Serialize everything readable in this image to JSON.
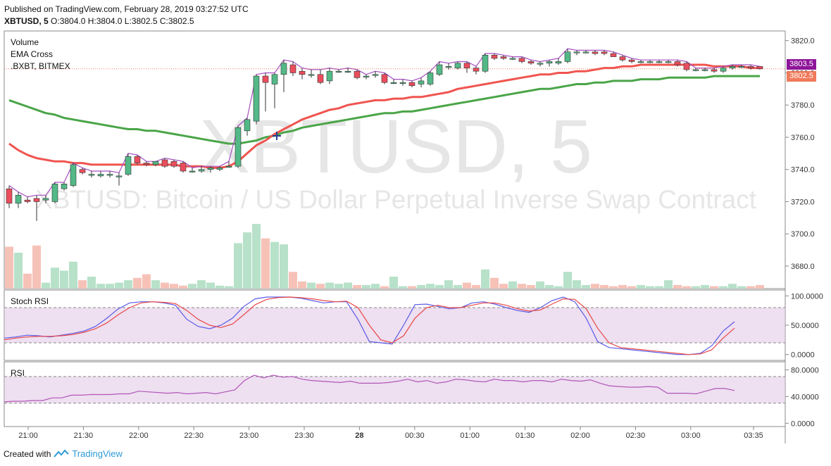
{
  "published": "Published on TradingView.com, February 28, 2019 03:27:52 UTC",
  "symbol": "XBTUSD, 5",
  "ohlc": {
    "o_label": "O:",
    "o": "3804.0",
    "h_label": "H:",
    "h": "3804.0",
    "l_label": "L:",
    "l": "3802.5",
    "c_label": "C:",
    "c": "3802.5"
  },
  "legend": [
    "Volume",
    "EMA Cross",
    ".BXBT, BITMEX"
  ],
  "watermark": {
    "big": "XBTUSD, 5",
    "small": "XBTUSD: Bitcoin / US Dollar Perpetual Inverse Swap Contract"
  },
  "badges": {
    "ema_value": "3803.5",
    "ema_color": "#8e1599",
    "last_price": "3802.5",
    "last_color": "#f07a5b"
  },
  "footer": {
    "created_with": "Created with",
    "brand": "TradingView"
  },
  "colors": {
    "up": "#53b987",
    "down": "#eb4d5c",
    "ema_fast": "#f0544f",
    "ema_slow": "#4aa548",
    "index_line": "#a64fc2",
    "stoch_k": "#5a5ae6",
    "stoch_d": "#e84848",
    "rsi": "#b257b8",
    "band": "#e0c4e6"
  },
  "chart_data": [
    {
      "type": "candlestick",
      "title": "XBTUSD, 5",
      "price_axis": {
        "ticks": [
          "3820.0",
          "3800.0",
          "3780.0",
          "3760.0",
          "3740.0",
          "3720.0",
          "3700.0",
          "3680.0"
        ],
        "ylim": [
          3666,
          3826
        ]
      },
      "time_axis": {
        "ticks": [
          "21:00",
          "21:30",
          "22:00",
          "22:30",
          "23:00",
          "23:30",
          "28",
          "00:30",
          "01:00",
          "01:30",
          "02:00",
          "02:30",
          "03:00",
          "03:35"
        ],
        "x_start": "20:50",
        "interval_minutes": 5
      },
      "candles": [
        {
          "o": 3728,
          "h": 3730,
          "l": 3716,
          "c": 3719
        },
        {
          "o": 3719,
          "h": 3726,
          "l": 3716,
          "c": 3724
        },
        {
          "o": 3721,
          "h": 3723,
          "l": 3719,
          "c": 3720
        },
        {
          "o": 3722,
          "h": 3724,
          "l": 3708,
          "c": 3720
        },
        {
          "o": 3721,
          "h": 3724,
          "l": 3719,
          "c": 3722
        },
        {
          "o": 3720,
          "h": 3732,
          "l": 3719,
          "c": 3731
        },
        {
          "o": 3728,
          "h": 3732,
          "l": 3727,
          "c": 3731
        },
        {
          "o": 3730,
          "h": 3744,
          "l": 3729,
          "c": 3743
        },
        {
          "o": 3740,
          "h": 3741,
          "l": 3737,
          "c": 3738
        },
        {
          "o": 3737,
          "h": 3739,
          "l": 3735,
          "c": 3737
        },
        {
          "o": 3736,
          "h": 3739,
          "l": 3735,
          "c": 3737
        },
        {
          "o": 3737,
          "h": 3739,
          "l": 3735,
          "c": 3737
        },
        {
          "o": 3736,
          "h": 3738,
          "l": 3730,
          "c": 3736
        },
        {
          "o": 3737,
          "h": 3750,
          "l": 3736,
          "c": 3748
        },
        {
          "o": 3748,
          "h": 3749,
          "l": 3743,
          "c": 3744
        },
        {
          "o": 3744,
          "h": 3745,
          "l": 3742,
          "c": 3743
        },
        {
          "o": 3743,
          "h": 3745,
          "l": 3742,
          "c": 3745
        },
        {
          "o": 3746,
          "h": 3747,
          "l": 3741,
          "c": 3742
        },
        {
          "o": 3745,
          "h": 3746,
          "l": 3741,
          "c": 3742
        },
        {
          "o": 3744,
          "h": 3745,
          "l": 3738,
          "c": 3739
        },
        {
          "o": 3739,
          "h": 3741,
          "l": 3738,
          "c": 3739
        },
        {
          "o": 3739,
          "h": 3742,
          "l": 3738,
          "c": 3740
        },
        {
          "o": 3740,
          "h": 3742,
          "l": 3738,
          "c": 3741
        },
        {
          "o": 3740,
          "h": 3742,
          "l": 3739,
          "c": 3741
        },
        {
          "o": 3742,
          "h": 3745,
          "l": 3741,
          "c": 3742
        },
        {
          "o": 3742,
          "h": 3767,
          "l": 3741,
          "c": 3766
        },
        {
          "o": 3764,
          "h": 3772,
          "l": 3761,
          "c": 3771
        },
        {
          "o": 3770,
          "h": 3799,
          "l": 3768,
          "c": 3798
        },
        {
          "o": 3798,
          "h": 3800,
          "l": 3776,
          "c": 3794
        },
        {
          "o": 3793,
          "h": 3800,
          "l": 3778,
          "c": 3799
        },
        {
          "o": 3799,
          "h": 3808,
          "l": 3788,
          "c": 3806
        },
        {
          "o": 3805,
          "h": 3807,
          "l": 3798,
          "c": 3800
        },
        {
          "o": 3801,
          "h": 3803,
          "l": 3796,
          "c": 3799
        },
        {
          "o": 3799,
          "h": 3802,
          "l": 3797,
          "c": 3799
        },
        {
          "o": 3799,
          "h": 3802,
          "l": 3793,
          "c": 3794
        },
        {
          "o": 3795,
          "h": 3803,
          "l": 3793,
          "c": 3801
        },
        {
          "o": 3801,
          "h": 3802,
          "l": 3800,
          "c": 3801
        },
        {
          "o": 3801,
          "h": 3803,
          "l": 3800,
          "c": 3801
        },
        {
          "o": 3801,
          "h": 3802,
          "l": 3796,
          "c": 3797
        },
        {
          "o": 3798,
          "h": 3799,
          "l": 3796,
          "c": 3798
        },
        {
          "o": 3799,
          "h": 3801,
          "l": 3797,
          "c": 3799
        },
        {
          "o": 3799,
          "h": 3800,
          "l": 3793,
          "c": 3794
        },
        {
          "o": 3794,
          "h": 3796,
          "l": 3793,
          "c": 3794
        },
        {
          "o": 3794,
          "h": 3796,
          "l": 3792,
          "c": 3794
        },
        {
          "o": 3794,
          "h": 3795,
          "l": 3791,
          "c": 3792
        },
        {
          "o": 3793,
          "h": 3797,
          "l": 3791,
          "c": 3795
        },
        {
          "o": 3793,
          "h": 3801,
          "l": 3792,
          "c": 3800
        },
        {
          "o": 3799,
          "h": 3807,
          "l": 3798,
          "c": 3805
        },
        {
          "o": 3804,
          "h": 3806,
          "l": 3802,
          "c": 3804
        },
        {
          "o": 3803,
          "h": 3807,
          "l": 3802,
          "c": 3806
        },
        {
          "o": 3806,
          "h": 3807,
          "l": 3800,
          "c": 3803
        },
        {
          "o": 3803,
          "h": 3804,
          "l": 3799,
          "c": 3801
        },
        {
          "o": 3801,
          "h": 3812,
          "l": 3800,
          "c": 3811
        },
        {
          "o": 3811,
          "h": 3812,
          "l": 3808,
          "c": 3809
        },
        {
          "o": 3810,
          "h": 3811,
          "l": 3808,
          "c": 3809
        },
        {
          "o": 3809,
          "h": 3810,
          "l": 3808,
          "c": 3809
        },
        {
          "o": 3809,
          "h": 3810,
          "l": 3806,
          "c": 3807
        },
        {
          "o": 3807,
          "h": 3808,
          "l": 3805,
          "c": 3806
        },
        {
          "o": 3806,
          "h": 3807,
          "l": 3804,
          "c": 3806
        },
        {
          "o": 3806,
          "h": 3808,
          "l": 3804,
          "c": 3807
        },
        {
          "o": 3806,
          "h": 3809,
          "l": 3805,
          "c": 3807
        },
        {
          "o": 3807,
          "h": 3815,
          "l": 3806,
          "c": 3813
        },
        {
          "o": 3813,
          "h": 3814,
          "l": 3811,
          "c": 3813
        },
        {
          "o": 3813,
          "h": 3814,
          "l": 3812,
          "c": 3813
        },
        {
          "o": 3813,
          "h": 3814,
          "l": 3811,
          "c": 3812
        },
        {
          "o": 3813,
          "h": 3814,
          "l": 3811,
          "c": 3812
        },
        {
          "o": 3812,
          "h": 3813,
          "l": 3810,
          "c": 3810
        },
        {
          "o": 3810,
          "h": 3811,
          "l": 3807,
          "c": 3808
        },
        {
          "o": 3808,
          "h": 3809,
          "l": 3806,
          "c": 3807
        },
        {
          "o": 3807,
          "h": 3808,
          "l": 3806,
          "c": 3807
        },
        {
          "o": 3807,
          "h": 3808,
          "l": 3806,
          "c": 3807
        },
        {
          "o": 3807,
          "h": 3808,
          "l": 3806,
          "c": 3807
        },
        {
          "o": 3807,
          "h": 3808,
          "l": 3806,
          "c": 3807
        },
        {
          "o": 3807,
          "h": 3808,
          "l": 3804,
          "c": 3805
        },
        {
          "o": 3806,
          "h": 3807,
          "l": 3801,
          "c": 3802
        },
        {
          "o": 3802,
          "h": 3803,
          "l": 3801,
          "c": 3802
        },
        {
          "o": 3802,
          "h": 3803,
          "l": 3801,
          "c": 3802
        },
        {
          "o": 3802,
          "h": 3803,
          "l": 3800,
          "c": 3801
        },
        {
          "o": 3801,
          "h": 3804,
          "l": 3800,
          "c": 3803
        },
        {
          "o": 3803,
          "h": 3805,
          "l": 3802,
          "c": 3804
        },
        {
          "o": 3804,
          "h": 3805,
          "l": 3803,
          "c": 3804
        },
        {
          "o": 3804,
          "h": 3805,
          "l": 3802,
          "c": 3803
        },
        {
          "o": 3804,
          "h": 3804,
          "l": 3802,
          "c": 3802.5
        }
      ],
      "volume": [
        70,
        60,
        25,
        72,
        10,
        35,
        30,
        45,
        14,
        20,
        8,
        8,
        10,
        14,
        18,
        24,
        14,
        10,
        8,
        5,
        8,
        14,
        10,
        5,
        4,
        76,
        94,
        108,
        84,
        78,
        74,
        28,
        12,
        10,
        8,
        10,
        8,
        10,
        6,
        6,
        8,
        4,
        20,
        4,
        4,
        6,
        8,
        6,
        14,
        6,
        10,
        6,
        32,
        18,
        8,
        12,
        8,
        6,
        12,
        6,
        4,
        28,
        14,
        6,
        8,
        6,
        4,
        6,
        4,
        6,
        4,
        4,
        14,
        6,
        4,
        4,
        6,
        4,
        4,
        8,
        4,
        4,
        6
      ],
      "ema_fast": [
        3756,
        3752,
        3749,
        3747,
        3746,
        3745,
        3745,
        3744,
        3744,
        3743,
        3743,
        3743,
        3743,
        3743,
        3743,
        3743,
        3743,
        3743,
        3743,
        3742,
        3742,
        3742,
        3741,
        3741,
        3742,
        3745,
        3750,
        3755,
        3758,
        3762,
        3765,
        3768,
        3771,
        3773,
        3775,
        3777,
        3778,
        3780,
        3781,
        3782,
        3783,
        3783,
        3784,
        3784,
        3785,
        3785,
        3786,
        3787,
        3788,
        3790,
        3791,
        3792,
        3793,
        3794,
        3795,
        3796,
        3797,
        3798,
        3799,
        3799,
        3800,
        3800,
        3801,
        3801,
        3802,
        3803,
        3803,
        3804,
        3804,
        3805,
        3805,
        3805,
        3805,
        3805,
        3805,
        3805,
        3805,
        3804,
        3804,
        3804,
        3804,
        3803,
        3803
      ],
      "ema_slow": [
        3783,
        3781,
        3779,
        3777,
        3775,
        3774,
        3772,
        3771,
        3770,
        3769,
        3768,
        3767,
        3766,
        3765,
        3765,
        3764,
        3764,
        3763,
        3762,
        3761,
        3760,
        3759,
        3758,
        3757,
        3756,
        3756,
        3757,
        3758,
        3760,
        3761,
        3763,
        3764,
        3766,
        3767,
        3768,
        3769,
        3770,
        3771,
        3772,
        3773,
        3774,
        3775,
        3775,
        3776,
        3776,
        3777,
        3778,
        3779,
        3780,
        3781,
        3782,
        3783,
        3784,
        3785,
        3786,
        3787,
        3788,
        3789,
        3790,
        3790,
        3791,
        3792,
        3793,
        3793,
        3794,
        3794,
        3795,
        3795,
        3795,
        3796,
        3796,
        3796,
        3797,
        3797,
        3797,
        3797,
        3797,
        3798,
        3798,
        3798,
        3798,
        3798,
        3798
      ],
      "ema_labels": [
        "3803.5",
        "3802.5"
      ]
    },
    {
      "type": "line",
      "title": "Stoch RSI",
      "y_ticks": [
        "100.0000",
        "50.0000",
        "0.0000"
      ],
      "ylim": [
        -10,
        110
      ],
      "band": [
        20,
        80
      ],
      "series": [
        {
          "key": "k",
          "values": [
            28,
            30,
            33,
            32,
            30,
            33,
            36,
            40,
            48,
            62,
            78,
            88,
            90,
            90,
            88,
            84,
            60,
            48,
            44,
            50,
            62,
            82,
            95,
            98,
            98,
            98,
            96,
            92,
            88,
            90,
            90,
            60,
            22,
            20,
            18,
            50,
            85,
            86,
            82,
            78,
            80,
            88,
            90,
            86,
            80,
            75,
            72,
            80,
            92,
            98,
            90,
            62,
            22,
            12,
            10,
            8,
            6,
            4,
            2,
            0,
            0,
            2,
            15,
            40,
            56
          ]
        },
        {
          "key": "d",
          "values": [
            25,
            28,
            30,
            31,
            31,
            32,
            34,
            38,
            44,
            54,
            68,
            80,
            88,
            90,
            89,
            87,
            75,
            60,
            50,
            46,
            52,
            68,
            85,
            94,
            97,
            98,
            97,
            95,
            92,
            90,
            91,
            80,
            50,
            25,
            20,
            32,
            62,
            80,
            84,
            80,
            80,
            84,
            88,
            88,
            84,
            78,
            74,
            76,
            86,
            95,
            94,
            78,
            45,
            20,
            12,
            10,
            8,
            6,
            4,
            2,
            0,
            1,
            8,
            28,
            45
          ]
        }
      ]
    },
    {
      "type": "line",
      "title": "RSI",
      "y_ticks": [
        "80.0000",
        "40.0000",
        "0.0000"
      ],
      "ylim": [
        -5,
        92
      ],
      "band": [
        30,
        70
      ],
      "series": [
        {
          "key": "rsi",
          "values": [
            32,
            33,
            33,
            34,
            34,
            38,
            38,
            42,
            42,
            43,
            43,
            43,
            44,
            44,
            48,
            47,
            46,
            45,
            46,
            44,
            45,
            46,
            44,
            47,
            50,
            64,
            72,
            68,
            72,
            69,
            70,
            66,
            64,
            63,
            62,
            61,
            63,
            60,
            60,
            60,
            61,
            63,
            66,
            62,
            64,
            60,
            62,
            66,
            65,
            63,
            62,
            66,
            64,
            64,
            62,
            64,
            64,
            62,
            66,
            64,
            63,
            65,
            60,
            56,
            55,
            54,
            54,
            55,
            54,
            45,
            45,
            45,
            44,
            48,
            52,
            52,
            49
          ]
        }
      ]
    }
  ]
}
